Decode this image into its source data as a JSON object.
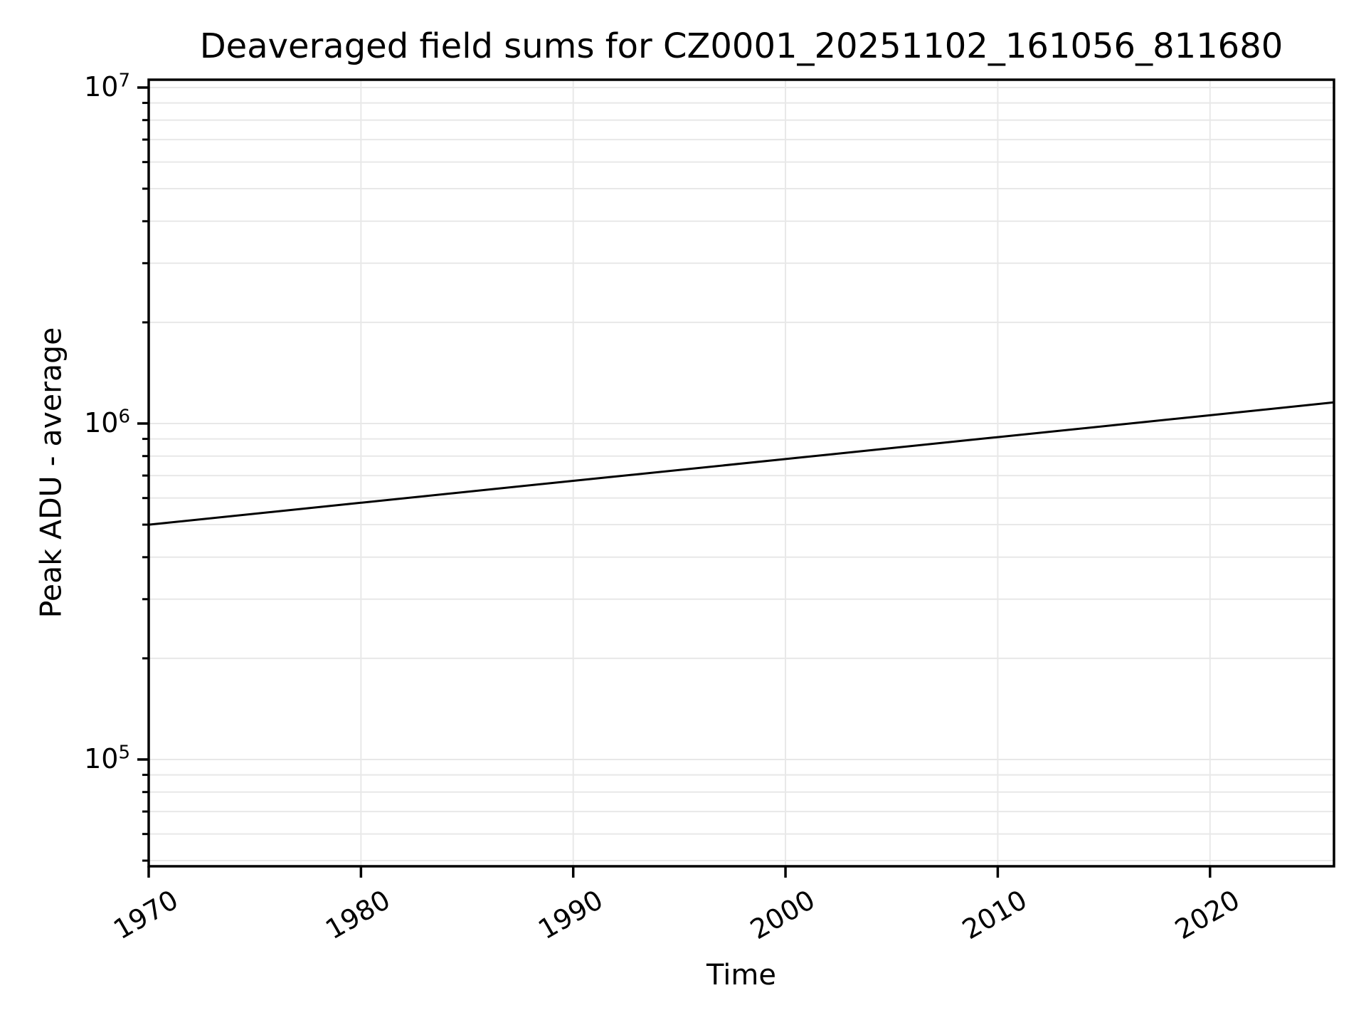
{
  "figure": {
    "background": "#ffffff"
  },
  "chart_data": {
    "type": "line",
    "title": "Deaveraged field sums for CZ0001_20251102_161056_811680",
    "xlabel": "Time",
    "ylabel": "Peak ADU - average",
    "x_scale": "linear_years",
    "y_scale": "log10",
    "xlim": [
      1970.0,
      2025.84
    ],
    "ylim": [
      48100,
      10550000
    ],
    "x_ticks": [
      1970,
      1980,
      1990,
      2000,
      2010,
      2020
    ],
    "x_tick_labels": [
      "1970",
      "1980",
      "1990",
      "2000",
      "2010",
      "2020"
    ],
    "y_major_ticks": [
      100000,
      1000000,
      10000000
    ],
    "y_tick_labels": [
      {
        "base": "10",
        "exp": "5"
      },
      {
        "base": "10",
        "exp": "6"
      },
      {
        "base": "10",
        "exp": "7"
      }
    ],
    "grid": {
      "which": "both",
      "color": "#e8e8e8",
      "vertical_on": "major_only"
    },
    "legend": "none",
    "series": [
      {
        "name": "deaveraged-field-sum",
        "color": "#000000",
        "x": [
          1970,
          1980,
          1990,
          2000,
          2010,
          2020,
          2025.84
        ],
        "y": [
          500000,
          581000,
          675000,
          784000,
          911000,
          1058000,
          1156000
        ]
      }
    ]
  },
  "style": {
    "spine_color": "#000000",
    "tick_color": "#000000",
    "text_color": "#000000"
  }
}
